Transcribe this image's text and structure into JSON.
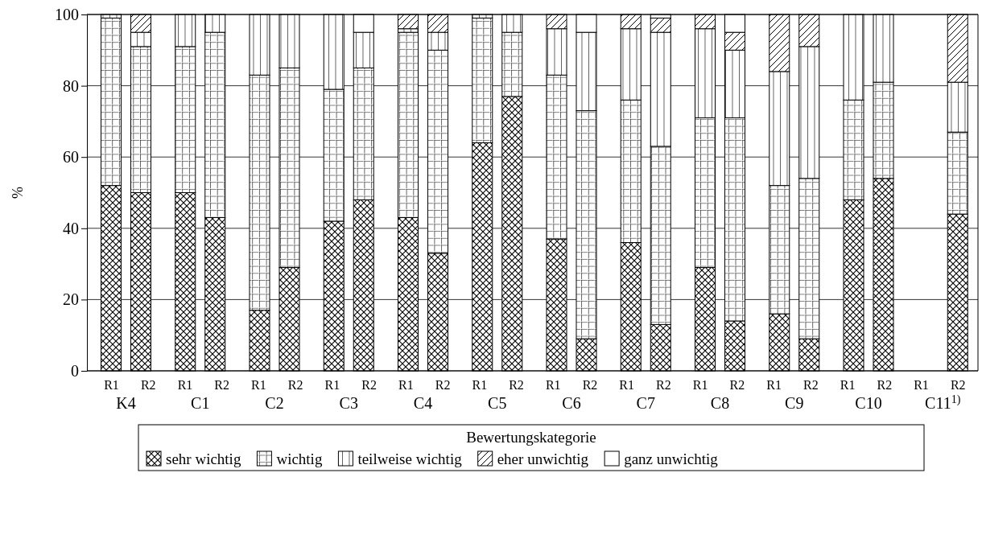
{
  "chart_data": {
    "type": "bar",
    "stacked": true,
    "ylabel": "%",
    "legend_title": "Bewertungskategorie",
    "legend": "bottom",
    "grid": "y",
    "ylim": [
      0,
      100
    ],
    "yticks": [
      0,
      20,
      40,
      60,
      80,
      100
    ],
    "categories": [
      "R1",
      "R2",
      "R1",
      "R2",
      "R1",
      "R2",
      "R1",
      "R2",
      "R1",
      "R2",
      "R1",
      "R2",
      "R1",
      "R2",
      "R1",
      "R2",
      "R1",
      "R2",
      "R1",
      "R2",
      "R1",
      "R2",
      "R1",
      "R2"
    ],
    "annotations": [
      "K4",
      "C1",
      "C2",
      "C3",
      "C4",
      "C5",
      "C6",
      "C7",
      "C8",
      "C9",
      "C10",
      "C11$^{1)}$"
    ],
    "series": [
      {
        "name": "sehr wichtig",
        "color": "#000000",
        "values": [
          52,
          50,
          50,
          43,
          17,
          29,
          42,
          48,
          43,
          33,
          64,
          77,
          37,
          9,
          36,
          13,
          29,
          14,
          16,
          9,
          48,
          54,
          null,
          44
        ]
      },
      {
        "name": "wichtig",
        "color": "#000000",
        "values": [
          47,
          41,
          41,
          52,
          66,
          56,
          37,
          37,
          52,
          57,
          35,
          18,
          46,
          64,
          40,
          50,
          42,
          57,
          36,
          45,
          28,
          27,
          null,
          23
        ]
      },
      {
        "name": "teilweise wichtig",
        "color": "#000000",
        "values": [
          1,
          4,
          9,
          5,
          17,
          15,
          21,
          10,
          1,
          5,
          1,
          5,
          13,
          22,
          20,
          32,
          25,
          19,
          32,
          37,
          24,
          19,
          null,
          14
        ]
      },
      {
        "name": "eher unwichtig",
        "color": "#000000",
        "values": [
          0,
          5,
          0,
          0,
          0,
          0,
          0,
          0,
          4,
          5,
          0,
          0,
          4,
          0,
          4,
          4,
          4,
          5,
          16,
          9,
          0,
          0,
          null,
          19
        ]
      },
      {
        "name": "ganz unwichtig",
        "color": "#000000",
        "values": [
          0,
          0,
          0,
          0,
          0,
          0,
          0,
          5,
          0,
          0,
          0,
          0,
          0,
          5,
          0,
          1,
          0,
          5,
          0,
          0,
          0,
          0,
          null,
          0
        ]
      }
    ]
  }
}
